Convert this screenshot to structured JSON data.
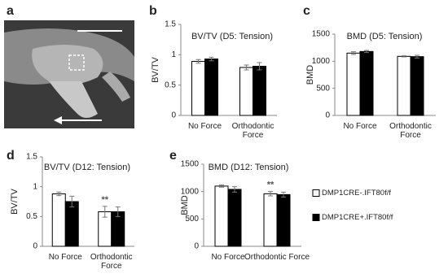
{
  "image_panel": {
    "label": "a"
  },
  "chart_data": [
    {
      "type": "bar",
      "label": "b",
      "title": "BV/TV (D5: Tension)",
      "y_label": "BV/TV",
      "categories": [
        "No Force",
        "Orthodontic Force"
      ],
      "series": [
        {
          "color": "#ffffff",
          "values": [
            0.89,
            0.79
          ],
          "errors": [
            0.03,
            0.04
          ]
        },
        {
          "color": "#000000",
          "values": [
            0.93,
            0.81
          ],
          "errors": [
            0.03,
            0.06
          ]
        }
      ],
      "ylim": [
        0,
        1.5
      ],
      "yticks": [
        0,
        0.5,
        1,
        1.5
      ]
    },
    {
      "type": "bar",
      "label": "c",
      "title": "BMD (D5: Tension)",
      "y_label": "BMD",
      "categories": [
        "No Force",
        "Orthodontic Force"
      ],
      "series": [
        {
          "color": "#ffffff",
          "values": [
            1150,
            1090
          ],
          "errors": [
            25,
            10
          ]
        },
        {
          "color": "#000000",
          "values": [
            1180,
            1085
          ],
          "errors": [
            20,
            25
          ]
        }
      ],
      "ylim": [
        0,
        1500
      ],
      "yticks": [
        0,
        500,
        1000,
        1500
      ]
    },
    {
      "type": "bar",
      "label": "d",
      "title": "BV/TV (D12: Tension)",
      "y_label": "BV/TV",
      "categories": [
        "No Force",
        "Orthodontic Force"
      ],
      "series": [
        {
          "color": "#ffffff",
          "values": [
            0.88,
            0.58
          ],
          "errors": [
            0.03,
            0.09
          ]
        },
        {
          "color": "#000000",
          "values": [
            0.75,
            0.58
          ],
          "errors": [
            0.09,
            0.08
          ]
        }
      ],
      "ylim": [
        0,
        1.5
      ],
      "yticks": [
        0,
        0.5,
        1,
        1.5
      ],
      "annotations": [
        {
          "text": "**",
          "category": "Orthodontic Force"
        }
      ]
    },
    {
      "type": "bar",
      "label": "e",
      "title": "BMD (D12: Tension)",
      "y_label": "BMD",
      "categories": [
        "No Force",
        "Orthodontic Force"
      ],
      "series": [
        {
          "name": "DMP1CRE-.IFT80f/f",
          "color": "#ffffff",
          "values": [
            1100,
            960
          ],
          "errors": [
            20,
            40
          ]
        },
        {
          "name": "DMP1CRE+.IFT80f/f",
          "color": "#000000",
          "values": [
            1040,
            945
          ],
          "errors": [
            50,
            45
          ]
        }
      ],
      "ylim": [
        0,
        1500
      ],
      "yticks": [
        0,
        500,
        1000,
        1500
      ],
      "legend": "right",
      "annotations": [
        {
          "text": "**",
          "category": "Orthodontic Force"
        }
      ]
    }
  ]
}
